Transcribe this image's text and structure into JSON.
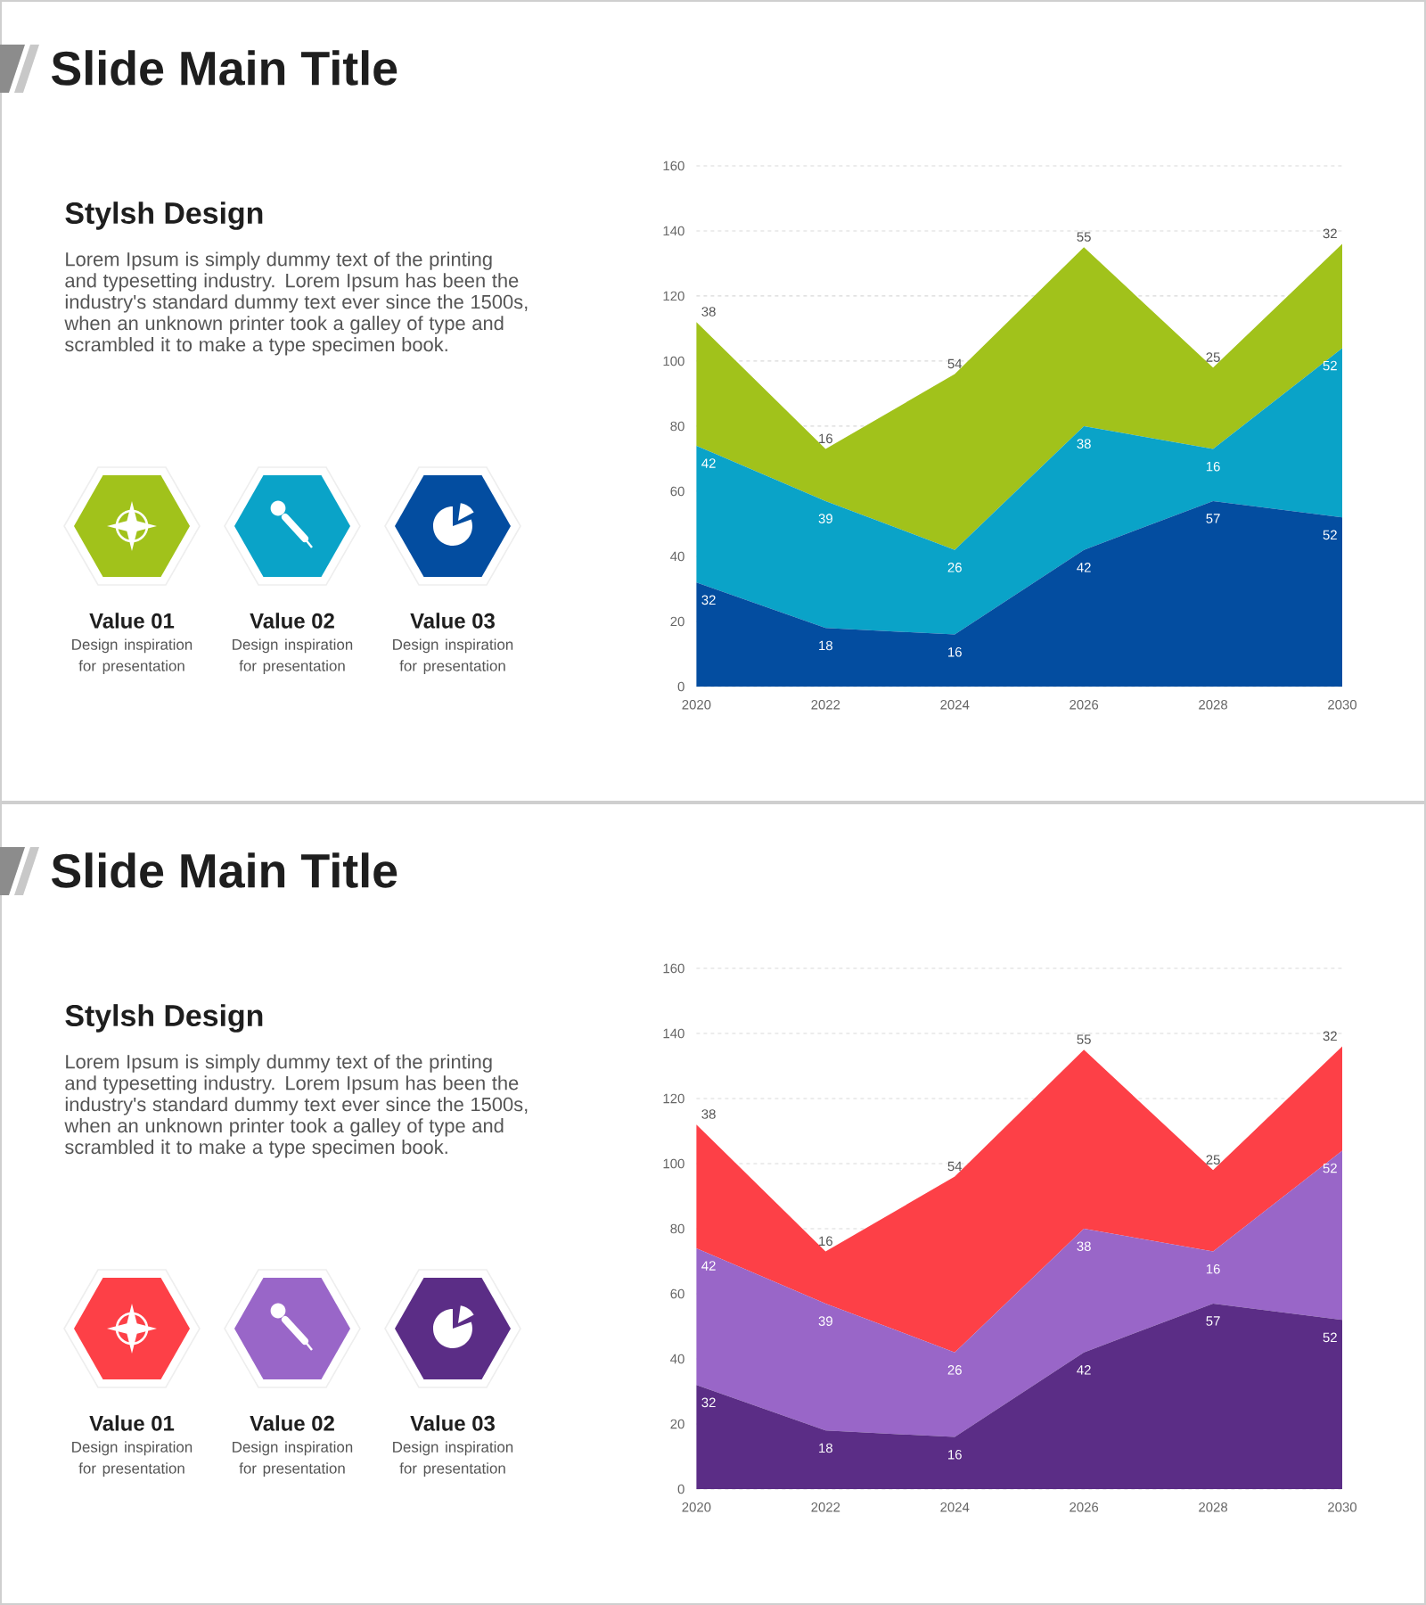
{
  "chart_data": [
    {
      "type": "other",
      "title": "Slide Main Title",
      "subtitle": "Stylsh Design",
      "annotations": [
        "Lorem Ipsum is simply dummy text of the printing and typesetting industry. Lorem Ipsum has been the industry's standard dummy text ever since the 1500s, when an unknown printer took a galley of type and scrambled it to make a type specimen book.",
        "Value 01",
        "Design inspiration for presentation",
        "Value 02",
        "Design inspiration for presentation",
        "Value 03",
        "Design inspiration for presentation"
      ]
    },
    {
      "type": "area",
      "stacked": true,
      "categories": [
        "2020",
        "2022",
        "2024",
        "2026",
        "2028",
        "2030"
      ],
      "series": [
        {
          "color": "#034da0",
          "values": [
            32,
            18,
            16,
            42,
            57,
            52
          ]
        },
        {
          "color": "#0aa3c8",
          "values": [
            42,
            39,
            26,
            38,
            16,
            52
          ]
        },
        {
          "color": "#a1c21b",
          "values": [
            38,
            16,
            54,
            55,
            25,
            32
          ]
        }
      ],
      "ylim": [
        0,
        160
      ],
      "yticks": [
        0,
        20,
        40,
        60,
        80,
        100,
        120,
        140,
        160
      ],
      "grid": "y",
      "data_labels": true
    },
    {
      "type": "other",
      "title": "Slide Main Title",
      "subtitle": "Stylsh Design",
      "annotations": [
        "Lorem Ipsum is simply dummy text of the printing and typesetting industry. Lorem Ipsum has been the industry's standard dummy text ever since the 1500s, when an unknown printer took a galley of type and scrambled it to make a type specimen book.",
        "Value 01",
        "Design inspiration for presentation",
        "Value 02",
        "Design inspiration for presentation",
        "Value 03",
        "Design inspiration for presentation"
      ]
    },
    {
      "type": "area",
      "stacked": true,
      "categories": [
        "2020",
        "2022",
        "2024",
        "2026",
        "2028",
        "2030"
      ],
      "series": [
        {
          "color": "#5b2d86",
          "values": [
            32,
            18,
            16,
            42,
            57,
            52
          ]
        },
        {
          "color": "#9966c8",
          "values": [
            42,
            39,
            26,
            38,
            16,
            52
          ]
        },
        {
          "color": "#fd4047",
          "values": [
            38,
            16,
            54,
            55,
            25,
            32
          ]
        }
      ],
      "ylim": [
        0,
        160
      ],
      "yticks": [
        0,
        20,
        40,
        60,
        80,
        100,
        120,
        140,
        160
      ],
      "grid": "y",
      "data_labels": true
    }
  ]
}
